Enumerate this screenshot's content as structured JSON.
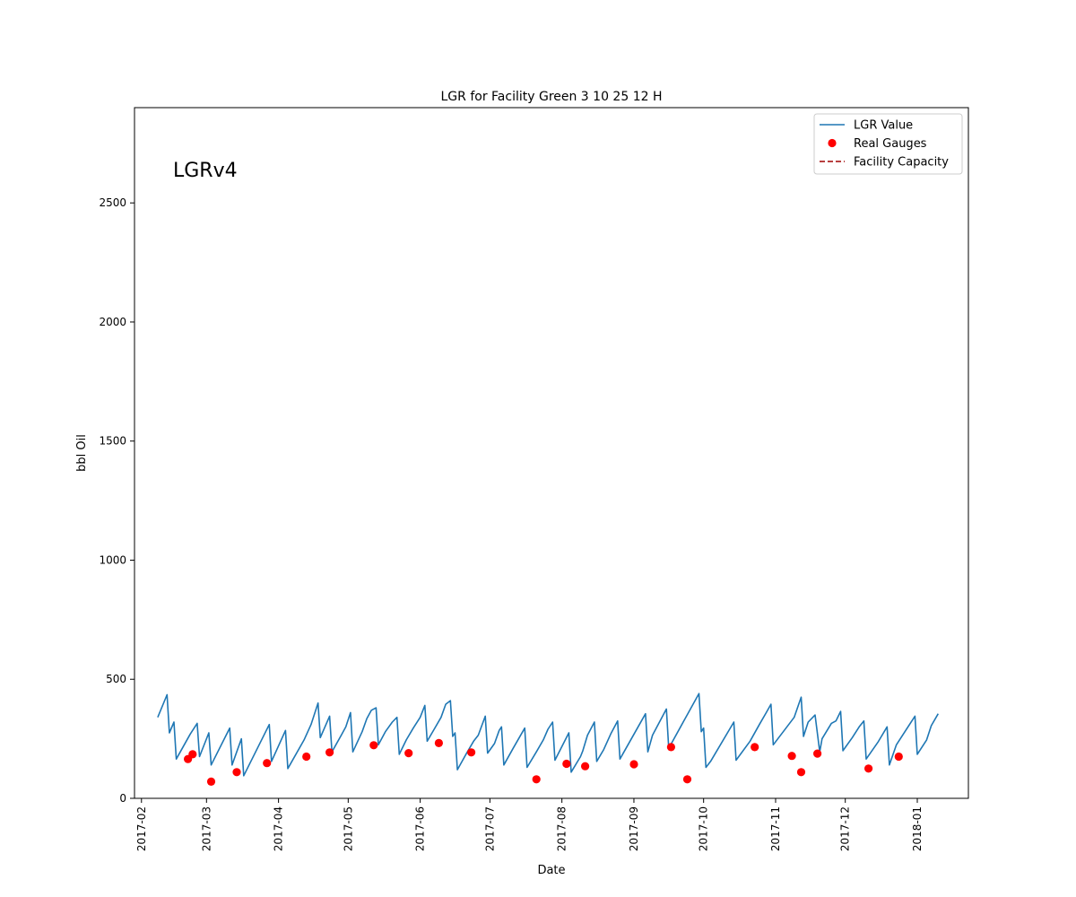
{
  "chart_data": {
    "type": "line",
    "title": "LGR for Facility Green 3 10 25 12 H",
    "xlabel": "Date",
    "ylabel": "bbl Oil",
    "annotation": "LGRv4",
    "xlim": [
      "2017-01-29",
      "2018-01-23"
    ],
    "ylim": [
      0,
      2900
    ],
    "x_ticks": [
      "2017-02",
      "2017-03",
      "2017-04",
      "2017-05",
      "2017-06",
      "2017-07",
      "2017-08",
      "2017-09",
      "2017-10",
      "2017-11",
      "2017-12",
      "2018-01"
    ],
    "y_ticks": [
      0,
      500,
      1000,
      1500,
      2000,
      2500
    ],
    "legend_position": "top-right",
    "grid": false,
    "series": [
      {
        "name": "LGR Value",
        "kind": "line",
        "color": "#1f77b4",
        "points": [
          [
            "2017-02-08",
            340
          ],
          [
            "2017-02-12",
            435
          ],
          [
            "2017-02-13",
            275
          ],
          [
            "2017-02-15",
            320
          ],
          [
            "2017-02-16",
            165
          ],
          [
            "2017-02-22",
            270
          ],
          [
            "2017-02-25",
            315
          ],
          [
            "2017-02-26",
            175
          ],
          [
            "2017-03-02",
            275
          ],
          [
            "2017-03-03",
            140
          ],
          [
            "2017-03-11",
            295
          ],
          [
            "2017-03-12",
            140
          ],
          [
            "2017-03-16",
            250
          ],
          [
            "2017-03-17",
            95
          ],
          [
            "2017-03-28",
            310
          ],
          [
            "2017-03-29",
            155
          ],
          [
            "2017-04-04",
            285
          ],
          [
            "2017-04-05",
            125
          ],
          [
            "2017-04-12",
            245
          ],
          [
            "2017-04-15",
            310
          ],
          [
            "2017-04-18",
            400
          ],
          [
            "2017-04-19",
            255
          ],
          [
            "2017-04-23",
            345
          ],
          [
            "2017-04-24",
            195
          ],
          [
            "2017-04-28",
            265
          ],
          [
            "2017-04-30",
            300
          ],
          [
            "2017-05-02",
            360
          ],
          [
            "2017-05-03",
            195
          ],
          [
            "2017-05-07",
            280
          ],
          [
            "2017-05-09",
            335
          ],
          [
            "2017-05-11",
            370
          ],
          [
            "2017-05-13",
            380
          ],
          [
            "2017-05-14",
            225
          ],
          [
            "2017-05-17",
            280
          ],
          [
            "2017-05-20",
            320
          ],
          [
            "2017-05-22",
            340
          ],
          [
            "2017-05-23",
            185
          ],
          [
            "2017-05-26",
            245
          ],
          [
            "2017-05-29",
            295
          ],
          [
            "2017-06-01",
            340
          ],
          [
            "2017-06-03",
            390
          ],
          [
            "2017-06-04",
            240
          ],
          [
            "2017-06-07",
            290
          ],
          [
            "2017-06-10",
            340
          ],
          [
            "2017-06-12",
            395
          ],
          [
            "2017-06-14",
            410
          ],
          [
            "2017-06-15",
            260
          ],
          [
            "2017-06-16",
            275
          ],
          [
            "2017-06-17",
            120
          ],
          [
            "2017-06-21",
            190
          ],
          [
            "2017-06-24",
            240
          ],
          [
            "2017-06-26",
            265
          ],
          [
            "2017-06-29",
            345
          ],
          [
            "2017-06-30",
            190
          ],
          [
            "2017-07-03",
            230
          ],
          [
            "2017-07-05",
            285
          ],
          [
            "2017-07-06",
            300
          ],
          [
            "2017-07-07",
            140
          ],
          [
            "2017-07-11",
            210
          ],
          [
            "2017-07-16",
            295
          ],
          [
            "2017-07-17",
            130
          ],
          [
            "2017-07-21",
            195
          ],
          [
            "2017-07-24",
            245
          ],
          [
            "2017-07-26",
            290
          ],
          [
            "2017-07-28",
            320
          ],
          [
            "2017-07-29",
            160
          ],
          [
            "2017-08-04",
            275
          ],
          [
            "2017-08-05",
            110
          ],
          [
            "2017-08-09",
            175
          ],
          [
            "2017-08-10",
            200
          ],
          [
            "2017-08-12",
            265
          ],
          [
            "2017-08-15",
            320
          ],
          [
            "2017-08-16",
            155
          ],
          [
            "2017-08-19",
            205
          ],
          [
            "2017-08-22",
            270
          ],
          [
            "2017-08-25",
            325
          ],
          [
            "2017-08-26",
            165
          ],
          [
            "2017-09-06",
            355
          ],
          [
            "2017-09-07",
            195
          ],
          [
            "2017-09-09",
            265
          ],
          [
            "2017-09-15",
            375
          ],
          [
            "2017-09-16",
            210
          ],
          [
            "2017-09-29",
            440
          ],
          [
            "2017-09-30",
            280
          ],
          [
            "2017-10-01",
            295
          ],
          [
            "2017-10-02",
            130
          ],
          [
            "2017-10-04",
            155
          ],
          [
            "2017-10-14",
            320
          ],
          [
            "2017-10-15",
            160
          ],
          [
            "2017-10-21",
            240
          ],
          [
            "2017-10-25",
            310
          ],
          [
            "2017-10-28",
            360
          ],
          [
            "2017-10-30",
            395
          ],
          [
            "2017-10-31",
            225
          ],
          [
            "2017-11-09",
            340
          ],
          [
            "2017-11-12",
            425
          ],
          [
            "2017-11-13",
            260
          ],
          [
            "2017-11-15",
            320
          ],
          [
            "2017-11-18",
            350
          ],
          [
            "2017-11-20",
            195
          ],
          [
            "2017-11-21",
            250
          ],
          [
            "2017-11-25",
            315
          ],
          [
            "2017-11-27",
            325
          ],
          [
            "2017-11-29",
            365
          ],
          [
            "2017-11-30",
            200
          ],
          [
            "2017-12-04",
            255
          ],
          [
            "2017-12-07",
            300
          ],
          [
            "2017-12-09",
            325
          ],
          [
            "2017-12-10",
            165
          ],
          [
            "2017-12-15",
            235
          ],
          [
            "2017-12-19",
            300
          ],
          [
            "2017-12-20",
            140
          ],
          [
            "2017-12-23",
            225
          ],
          [
            "2017-12-31",
            345
          ],
          [
            "2018-01-01",
            185
          ],
          [
            "2018-01-05",
            245
          ],
          [
            "2018-01-07",
            305
          ],
          [
            "2018-01-10",
            355
          ]
        ]
      },
      {
        "name": "Real Gauges",
        "kind": "scatter",
        "color": "#ff0000",
        "points": [
          [
            "2017-02-21",
            165
          ],
          [
            "2017-02-23",
            185
          ],
          [
            "2017-03-03",
            70
          ],
          [
            "2017-03-14",
            110
          ],
          [
            "2017-03-27",
            148
          ],
          [
            "2017-04-13",
            175
          ],
          [
            "2017-04-23",
            193
          ],
          [
            "2017-05-12",
            223
          ],
          [
            "2017-05-27",
            190
          ],
          [
            "2017-06-09",
            232
          ],
          [
            "2017-06-23",
            193
          ],
          [
            "2017-07-21",
            80
          ],
          [
            "2017-08-03",
            145
          ],
          [
            "2017-08-11",
            135
          ],
          [
            "2017-09-01",
            143
          ],
          [
            "2017-09-17",
            215
          ],
          [
            "2017-09-24",
            80
          ],
          [
            "2017-10-23",
            215
          ],
          [
            "2017-11-08",
            178
          ],
          [
            "2017-11-12",
            110
          ],
          [
            "2017-11-19",
            188
          ],
          [
            "2017-12-11",
            125
          ],
          [
            "2017-12-24",
            175
          ]
        ]
      },
      {
        "name": "Facility Capacity",
        "kind": "hline",
        "color": "#a00000",
        "dashed": true,
        "points": []
      }
    ]
  }
}
